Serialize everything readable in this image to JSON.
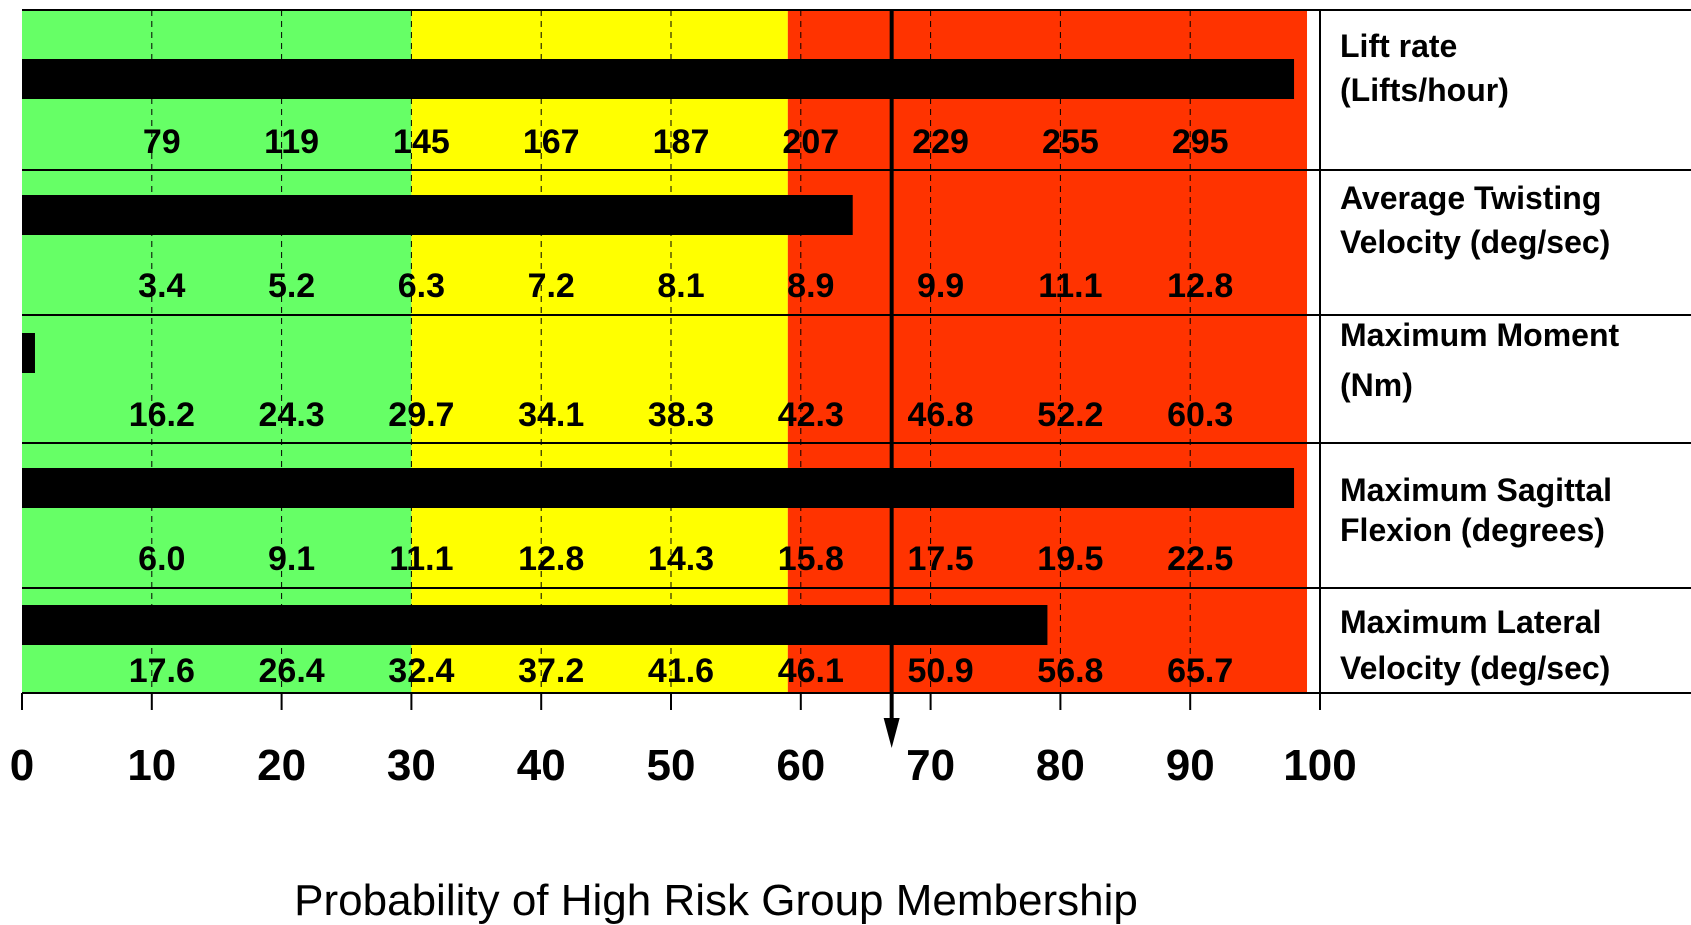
{
  "chart_data": {
    "type": "bar",
    "orientation": "horizontal",
    "xlabel": "Probability of High Risk Group Membership",
    "xlim": [
      0,
      100
    ],
    "x_ticks": [
      "0",
      "10",
      "20",
      "30",
      "40",
      "50",
      "60",
      "70",
      "80",
      "90",
      "100"
    ],
    "grid": "vertical dashed at each 10",
    "zones": [
      {
        "from": 0,
        "to": 30,
        "color": "#66ff66"
      },
      {
        "from": 30,
        "to": 59,
        "color": "#ffff00"
      },
      {
        "from": 59,
        "to": 99,
        "color": "#ff3300"
      }
    ],
    "overall_marker": {
      "value": 67,
      "color": "#000000"
    },
    "categories": [
      {
        "label_lines": [
          "Lift rate",
          "(Lifts/hour)"
        ],
        "value": 98,
        "scale": [
          "79",
          "119",
          "145",
          "167",
          "187",
          "207",
          "229",
          "255",
          "295"
        ]
      },
      {
        "label_lines": [
          "Average Twisting",
          "Velocity (deg/sec)"
        ],
        "value": 64,
        "scale": [
          "3.4",
          "5.2",
          "6.3",
          "7.2",
          "8.1",
          "8.9",
          "9.9",
          "11.1",
          "12.8"
        ]
      },
      {
        "label_lines": [
          "Maximum Moment",
          "(Nm)"
        ],
        "value": 1,
        "scale": [
          "16.2",
          "24.3",
          "29.7",
          "34.1",
          "38.3",
          "42.3",
          "46.8",
          "52.2",
          "60.3"
        ]
      },
      {
        "label_lines": [
          "Maximum Sagittal",
          "Flexion (degrees)"
        ],
        "value": 98,
        "scale": [
          "6.0",
          "9.1",
          "11.1",
          "12.8",
          "14.3",
          "15.8",
          "17.5",
          "19.5",
          "22.5"
        ]
      },
      {
        "label_lines": [
          "Maximum Lateral",
          "Velocity (deg/sec)"
        ],
        "value": 79,
        "scale": [
          "17.6",
          "26.4",
          "32.4",
          "37.2",
          "41.6",
          "46.1",
          "50.9",
          "56.8",
          "65.7"
        ]
      }
    ]
  }
}
